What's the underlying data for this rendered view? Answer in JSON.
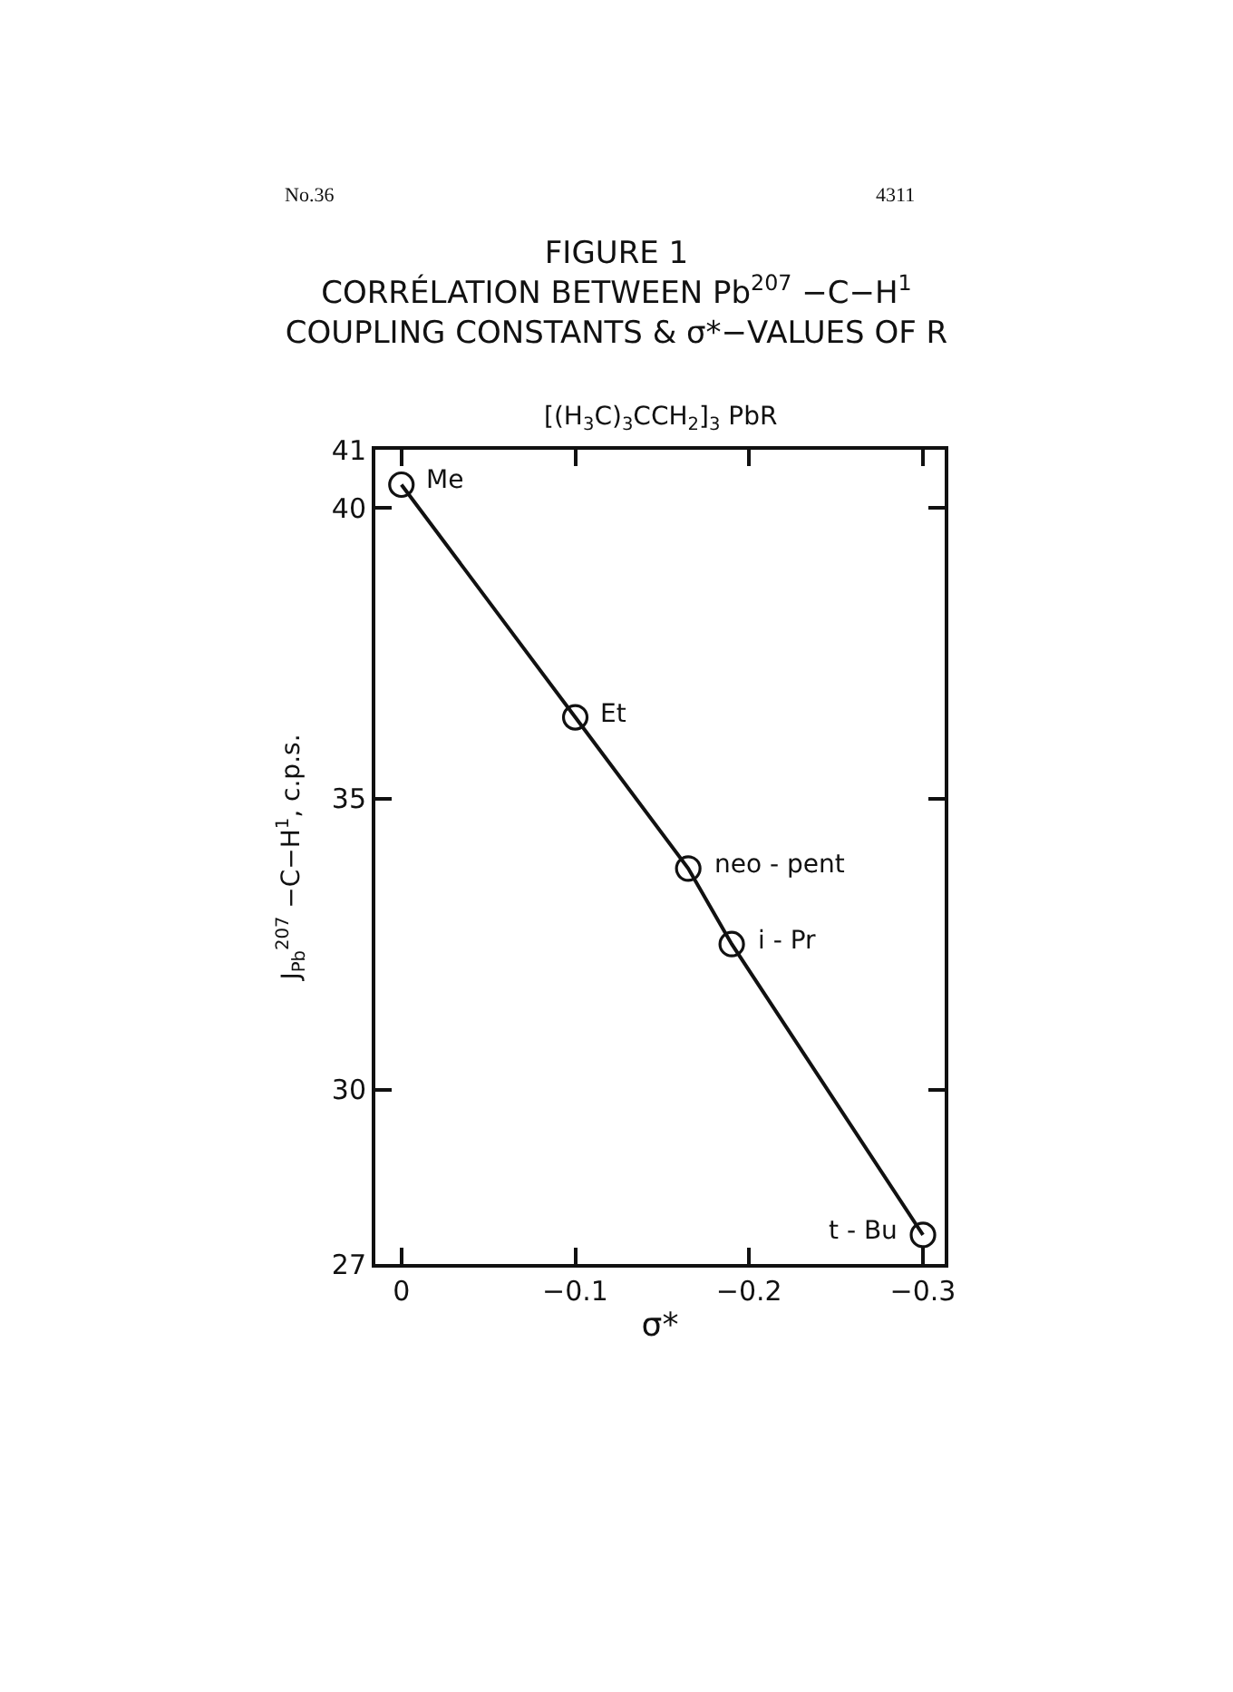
{
  "chart_data": {
    "type": "line",
    "title": "FIGURE 1\nCORRÉLATION BETWEEN Pb$^{207}$ −C−H$^{1}$\nCOUPLING CONSTANTS & σ*−VALUES OF R",
    "subtitle": "[(H$_{3}$C)$_{3}$CCH$_{2}$]$_{3}$ PbR",
    "xlabel": "σ*",
    "ylabel": "J$_{Pb}$$^{207}$ −C−H$^{1}$, c.p.s.",
    "x": [
      0,
      -0.1,
      -0.165,
      -0.19,
      -0.3
    ],
    "series": [
      {
        "color": "#111111",
        "values": [
          40.4,
          36.4,
          33.8,
          32.5,
          27.5
        ]
      }
    ],
    "marker": "circle",
    "line_style": "solid",
    "xlim": [
      0.015,
      -0.3125
    ],
    "xticks": [
      0,
      {
        "value": -0.1,
        "label": "−0.1"
      },
      {
        "value": -0.2,
        "label": "−0.2"
      },
      {
        "value": -0.3,
        "label": "−0.3"
      }
    ],
    "ylim": [
      27,
      41
    ],
    "yticks": [
      27,
      30,
      35,
      40,
      41
    ],
    "annotations": [
      {
        "text": "Me",
        "x": 0,
        "y": 40.4
      },
      {
        "text": "Et",
        "x": -0.1,
        "y": 36.4
      },
      {
        "text": "neo - pent",
        "x": -0.165,
        "y": 33.8
      },
      {
        "text": "i - Pr",
        "x": -0.19,
        "y": 32.5
      },
      {
        "text": "t - Bu",
        "x": -0.3,
        "y": 27.5
      },
      "No.36",
      "4311"
    ]
  }
}
